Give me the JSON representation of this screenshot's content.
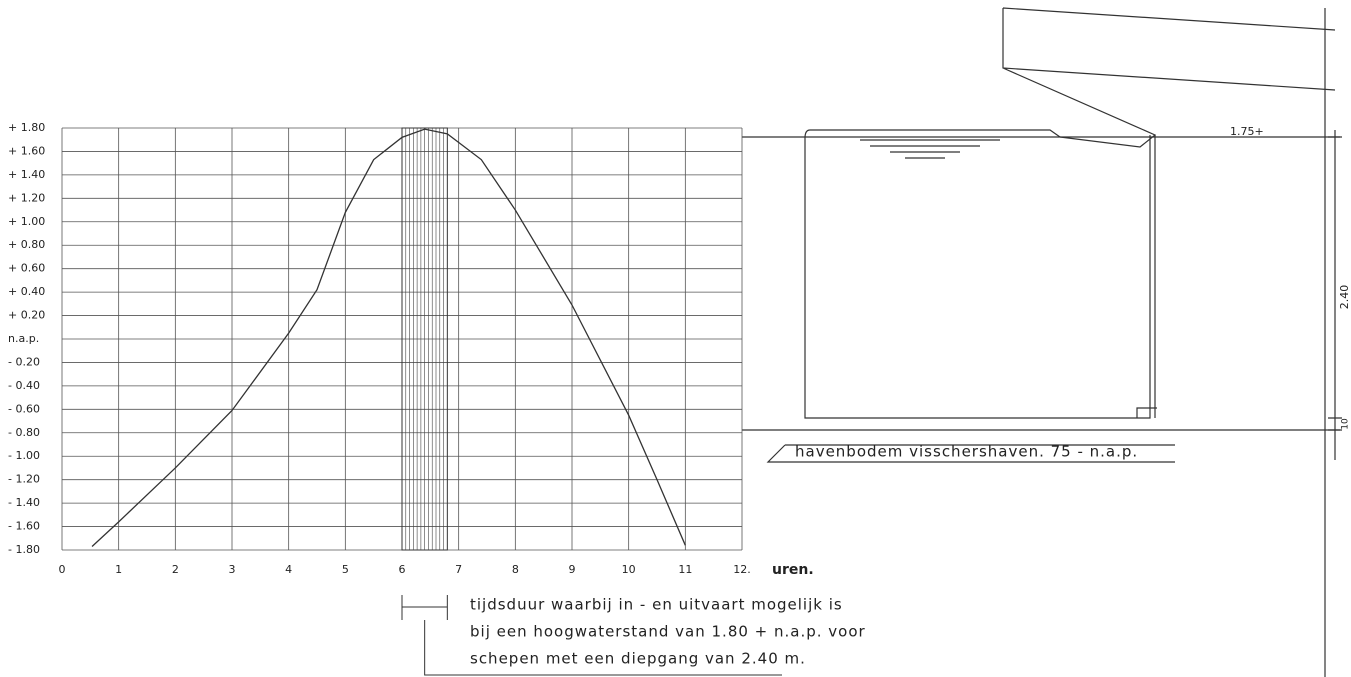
{
  "chart_data": {
    "type": "line",
    "color": "#333333",
    "x": [
      0.53,
      1,
      2,
      3,
      4,
      4.5,
      5,
      5.5,
      6,
      6.4,
      6.8,
      7.4,
      8,
      9,
      10,
      10.5,
      11
    ],
    "values": [
      -1.77,
      -1.56,
      -1.1,
      -0.61,
      0.05,
      0.42,
      1.08,
      1.53,
      1.72,
      1.79,
      1.75,
      1.53,
      1.1,
      0.29,
      -0.65,
      -1.2,
      -1.76
    ],
    "xlim": [
      0,
      12
    ],
    "ylim": [
      -1.8,
      1.8
    ],
    "xticks": [
      0,
      1,
      2,
      3,
      4,
      5,
      6,
      7,
      8,
      9,
      10,
      11,
      {
        "value": 12,
        "label": "12."
      }
    ],
    "yticks": [
      {
        "value": 1.8,
        "label": "+ 1.80"
      },
      {
        "value": 1.6,
        "label": "+ 1.60"
      },
      {
        "value": 1.4,
        "label": "+ 1.40"
      },
      {
        "value": 1.2,
        "label": "+ 1.20"
      },
      {
        "value": 1.0,
        "label": "+ 1.00"
      },
      {
        "value": 0.8,
        "label": "+ 0.80"
      },
      {
        "value": 0.6,
        "label": "+ 0.60"
      },
      {
        "value": 0.4,
        "label": "+ 0.40"
      },
      {
        "value": 0.2,
        "label": "+ 0.20"
      },
      {
        "value": 0,
        "label": "n.a.p."
      },
      {
        "value": -0.2,
        "label": "- 0.20"
      },
      {
        "value": -0.4,
        "label": "- 0.40"
      },
      {
        "value": -0.6,
        "label": "- 0.60"
      },
      {
        "value": -0.8,
        "label": "- 0.80"
      },
      {
        "value": -1.0,
        "label": "- 1.00"
      },
      {
        "value": -1.2,
        "label": "- 1.20"
      },
      {
        "value": -1.4,
        "label": "- 1.40"
      },
      {
        "value": -1.6,
        "label": "- 1.60"
      },
      {
        "value": -1.8,
        "label": "- 1.80"
      }
    ],
    "grid": true,
    "xlabel": "uren.",
    "highlight": [
      6,
      6.8
    ],
    "annotations": [
      "tijdsduur waarbij in - en uitvaart mogelijk is",
      "bij een hoogwaterstand van 1.80 + n.a.p. voor",
      "schepen met een diepgang van 2.40 m."
    ],
    "section_labels": {
      "water_level": "1.75+",
      "depth": "2.40",
      "bottom_step": "10",
      "bottom": "havenbodem visschershaven. 75 - n.a.p."
    }
  }
}
